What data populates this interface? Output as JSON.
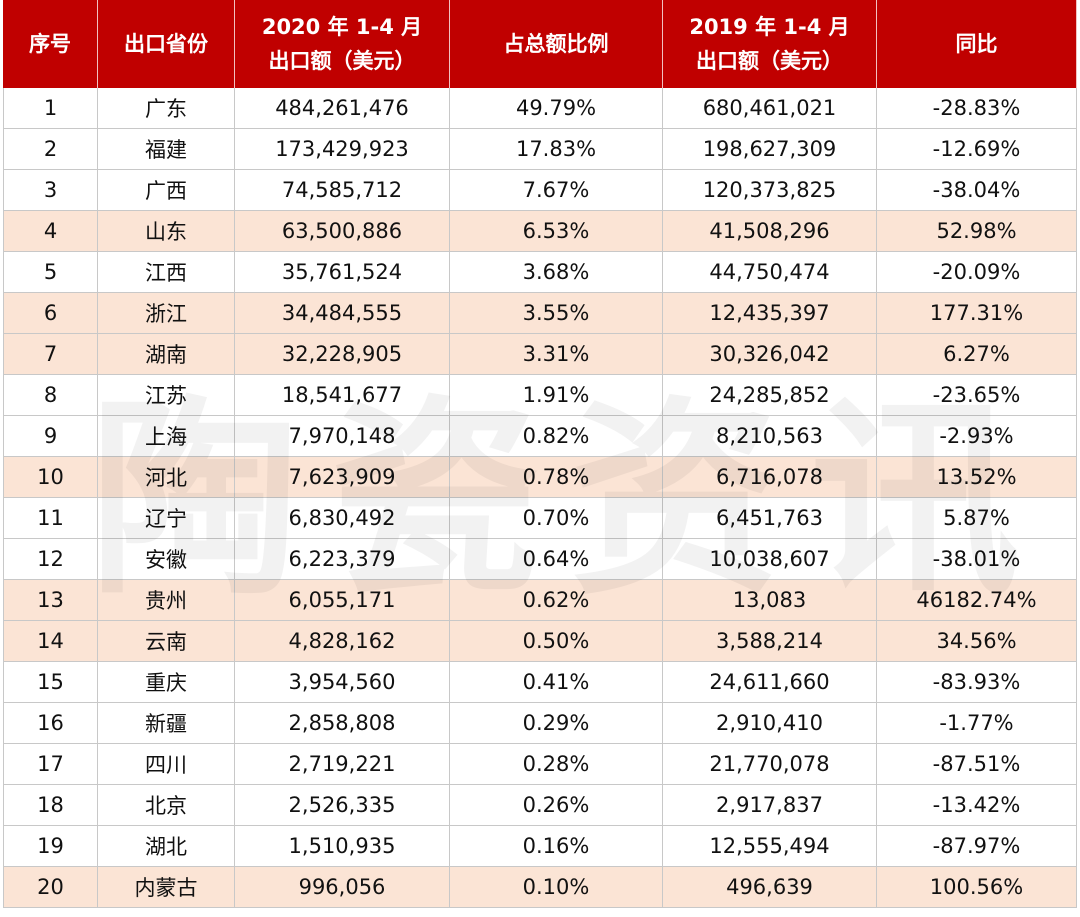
{
  "table": {
    "header": [
      [
        "序号"
      ],
      [
        "出口省份"
      ],
      [
        "2020 年 1-4 月",
        "出口额（美元）"
      ],
      [
        "占总额比例"
      ],
      [
        "2019 年 1-4 月",
        "出口额（美元）"
      ],
      [
        "同比"
      ]
    ],
    "rows": [
      [
        "1",
        "广东",
        "484,261,476",
        "49.79%",
        "680,461,021",
        "-28.83%"
      ],
      [
        "2",
        "福建",
        "173,429,923",
        "17.83%",
        "198,627,309",
        "-12.69%"
      ],
      [
        "3",
        "广西",
        "74,585,712",
        "7.67%",
        "120,373,825",
        "-38.04%"
      ],
      [
        "4",
        "山东",
        "63,500,886",
        "6.53%",
        "41,508,296",
        "52.98%"
      ],
      [
        "5",
        "江西",
        "35,761,524",
        "3.68%",
        "44,750,474",
        "-20.09%"
      ],
      [
        "6",
        "浙江",
        "34,484,555",
        "3.55%",
        "12,435,397",
        "177.31%"
      ],
      [
        "7",
        "湖南",
        "32,228,905",
        "3.31%",
        "30,326,042",
        "6.27%"
      ],
      [
        "8",
        "江苏",
        "18,541,677",
        "1.91%",
        "24,285,852",
        "-23.65%"
      ],
      [
        "9",
        "上海",
        "7,970,148",
        "0.82%",
        "8,210,563",
        "-2.93%"
      ],
      [
        "10",
        "河北",
        "7,623,909",
        "0.78%",
        "6,716,078",
        "13.52%"
      ],
      [
        "11",
        "辽宁",
        "6,830,492",
        "0.70%",
        "6,451,763",
        "5.87%"
      ],
      [
        "12",
        "安徽",
        "6,223,379",
        "0.64%",
        "10,038,607",
        "-38.01%"
      ],
      [
        "13",
        "贵州",
        "6,055,171",
        "0.62%",
        "13,083",
        "46182.74%"
      ],
      [
        "14",
        "云南",
        "4,828,162",
        "0.50%",
        "3,588,214",
        "34.56%"
      ],
      [
        "15",
        "重庆",
        "3,954,560",
        "0.41%",
        "24,611,660",
        "-83.93%"
      ],
      [
        "16",
        "新疆",
        "2,858,808",
        "0.29%",
        "2,910,410",
        "-1.77%"
      ],
      [
        "17",
        "四川",
        "2,719,221",
        "0.28%",
        "21,770,078",
        "-87.51%"
      ],
      [
        "18",
        "北京",
        "2,526,335",
        "0.26%",
        "2,917,837",
        "-13.42%"
      ],
      [
        "19",
        "湖北",
        "1,510,935",
        "0.16%",
        "12,555,494",
        "-87.97%"
      ],
      [
        "20",
        "内蒙古",
        "996,056",
        "0.10%",
        "496,639",
        "100.56%"
      ]
    ],
    "header_color": "#c00000",
    "highlight_color": "#fbe4d5",
    "highlighted_rows": [
      3,
      5,
      6,
      9,
      12,
      13,
      19
    ]
  },
  "watermark": "陶瓷资讯"
}
